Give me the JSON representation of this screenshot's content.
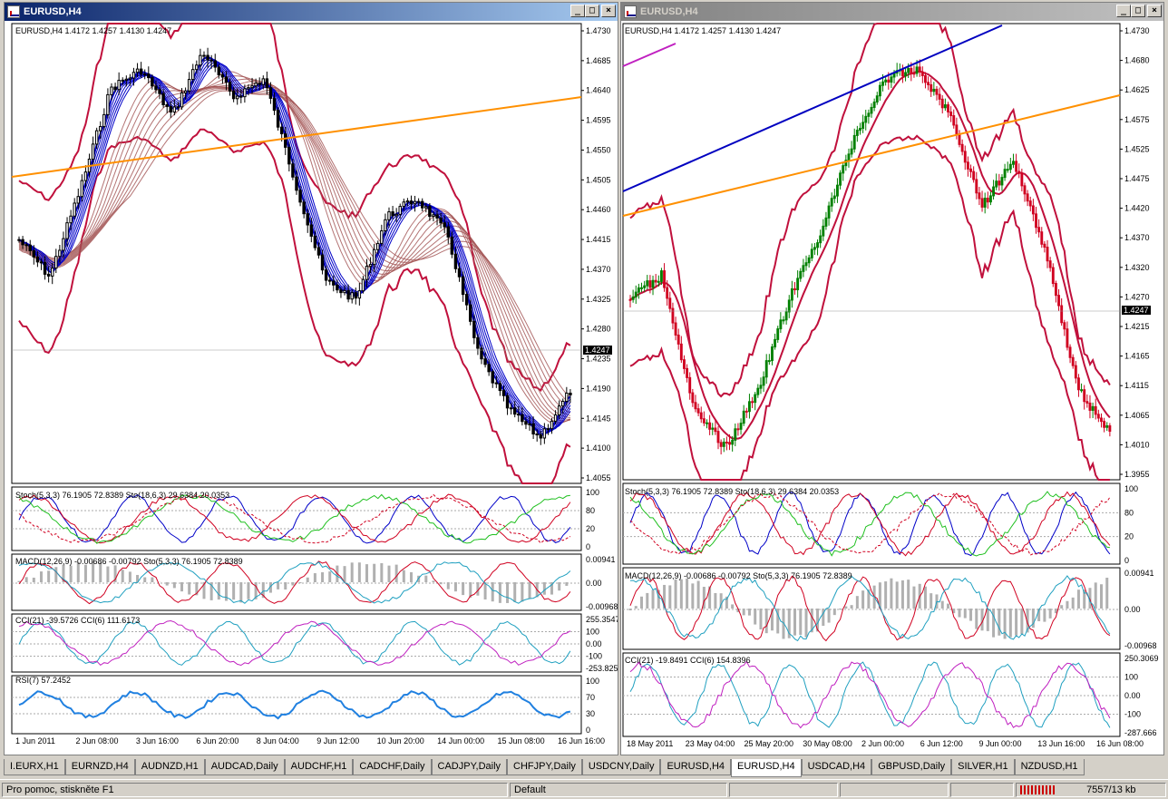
{
  "windows": [
    {
      "title": "EURUSD,H4",
      "active": true,
      "main_label": "EURUSD,H4  1.4172 1.4257 1.4130 1.4247",
      "price_ticks": [
        "1.4730",
        "1.4685",
        "1.4640",
        "1.4595",
        "1.4550",
        "1.4505",
        "1.4460",
        "1.4415",
        "1.4370",
        "1.4325",
        "1.4280",
        "1.4235",
        "1.4190",
        "1.4145",
        "1.4100",
        "1.4055"
      ],
      "current_price": "1.4247",
      "stoch_label": "Stoch(5,3,3) 76.1905 72.8389  Sto(18,6,3) 29.6384 20.0353",
      "stoch_ticks": [
        "100",
        "80",
        "20",
        "0"
      ],
      "macd_label": "MACD(12,26,9) -0.00686 -0.00792  Sto(5,3,3) 76.1905 72.8389",
      "macd_ticks": [
        "0.00941",
        "0.00",
        "-0.00968"
      ],
      "cci_label": "CCI(21) -39.5726  CCI(6) 111.6173",
      "cci_ticks": [
        "255.3547",
        "100",
        "0.00",
        "-100",
        "-253.825"
      ],
      "rsi_label": "RSI(7) 57.2452",
      "rsi_ticks": [
        "100",
        "70",
        "30",
        "0"
      ],
      "time_ticks": [
        "1 Jun 2011",
        "2 Jun 08:00",
        "3 Jun 16:00",
        "6 Jun 20:00",
        "8 Jun 04:00",
        "9 Jun 12:00",
        "10 Jun 20:00",
        "14 Jun 00:00",
        "15 Jun 08:00",
        "16 Jun 16:00"
      ]
    },
    {
      "title": "EURUSD,H4",
      "active": false,
      "main_label": "EURUSD,H4  1.4172 1.4257 1.4130 1.4247",
      "price_ticks": [
        "1.4730",
        "1.4680",
        "1.4625",
        "1.4575",
        "1.4525",
        "1.4475",
        "1.4420",
        "1.4370",
        "1.4320",
        "1.4270",
        "1.4215",
        "1.4165",
        "1.4115",
        "1.4065",
        "1.4010",
        "1.3955"
      ],
      "current_price": "1.4247",
      "stoch_label": "Stoch(5,3,3) 76.1905 72.8389  Sto(18,6,3) 29.6384 20.0353",
      "stoch_ticks": [
        "100",
        "80",
        "20",
        "0"
      ],
      "macd_label": "MACD(12,26,9) -0.00686 -0.00792  Sto(5,3,3) 76.1905 72.8389",
      "macd_ticks": [
        "0.00941",
        "0.00",
        "-0.00968"
      ],
      "cci_label": "CCI(21) -19.8491  CCI(6) 154.8396",
      "cci_ticks": [
        "250.3069",
        "100",
        "0.00",
        "-100",
        "-287.666"
      ],
      "time_ticks": [
        "18 May 2011",
        "23 May 04:00",
        "25 May 20:00",
        "30 May 08:00",
        "2 Jun 00:00",
        "6 Jun 12:00",
        "9 Jun 00:00",
        "13 Jun 16:00",
        "16 Jun 08:00"
      ]
    }
  ],
  "tabs": [
    "I.EURX,H1",
    "EURNZD,H4",
    "AUDNZD,H1",
    "AUDCAD,Daily",
    "AUDCHF,H1",
    "CADCHF,Daily",
    "CADJPY,Daily",
    "CHFJPY,Daily",
    "USDCNY,Daily",
    "EURUSD,H4",
    "EURUSD,H4",
    "USDCAD,H4",
    "GBPUSD,Daily",
    "SILVER,H1",
    "NZDUSD,H1"
  ],
  "active_tab_index": 10,
  "status": {
    "help": "Pro pomoc, stiskněte F1",
    "profile": "Default",
    "traffic": "7557/13 kb"
  },
  "colors": {
    "bull": "#008000",
    "bear": "#d00020",
    "ema_fast": "#0000c8",
    "ema_slow": "#a05050",
    "bollinger": "#c0103c",
    "trend_orange": "#ff9000",
    "trend_blue": "#0000c0"
  }
}
